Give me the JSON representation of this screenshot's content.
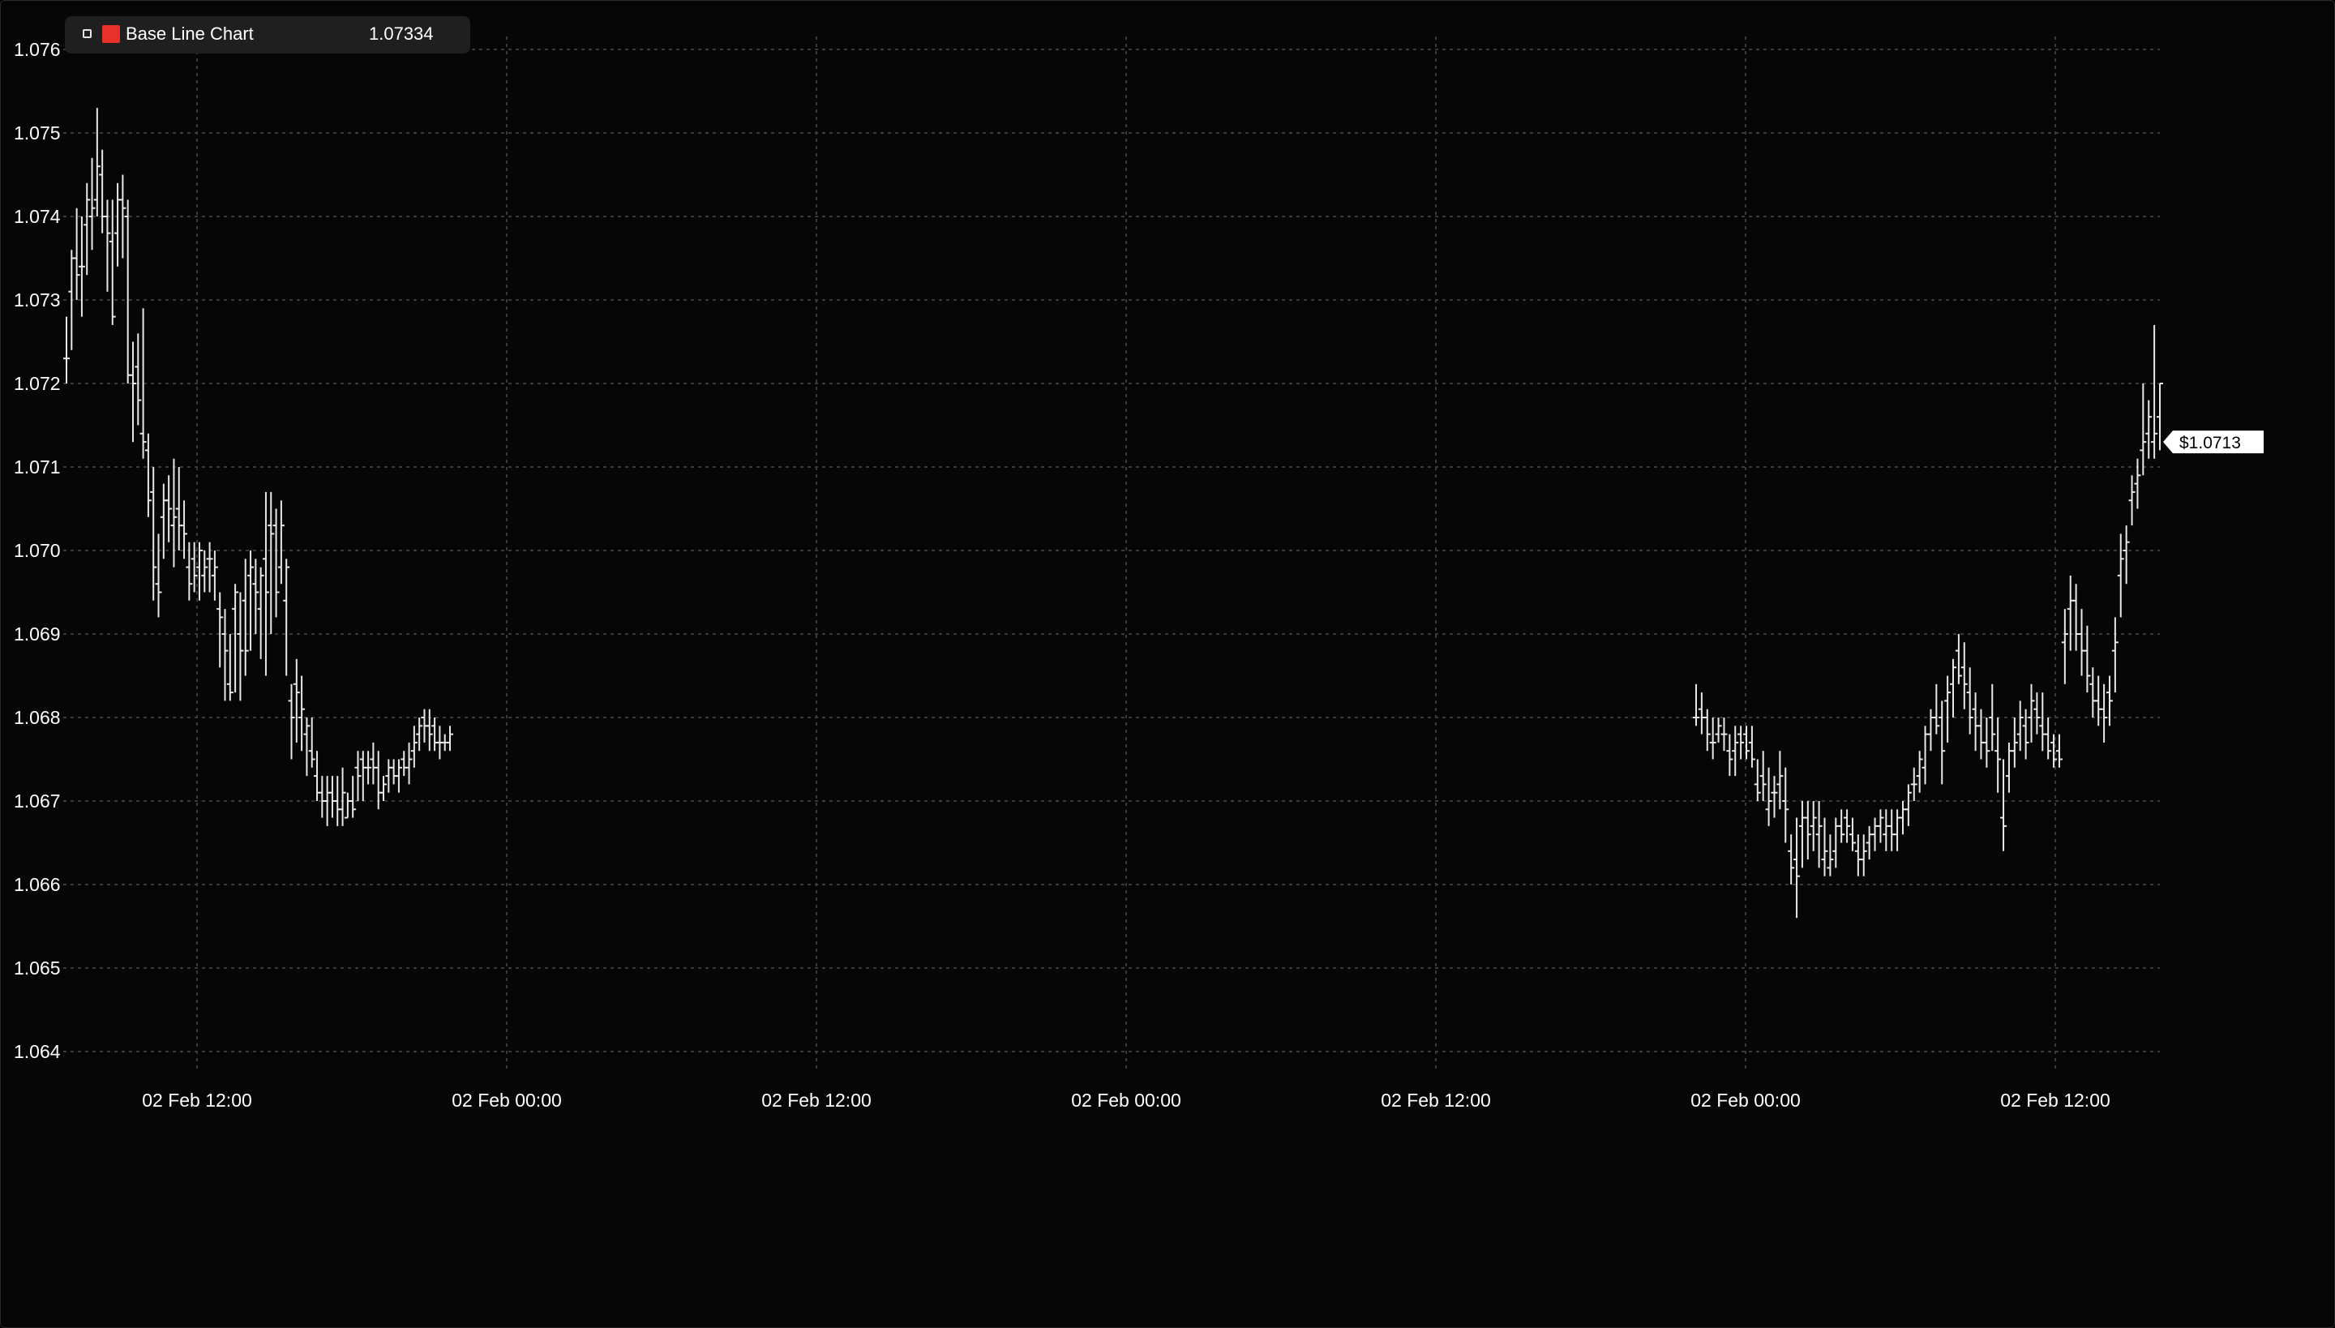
{
  "legend": {
    "series_name": "Base Line Chart",
    "value": "1.07334",
    "swatch_color": "#e8312a"
  },
  "price_label": "$1.0713",
  "colors": {
    "background": "#060606",
    "bar": "#e8e8e8",
    "grid": "#3a3a3a"
  },
  "chart_data": {
    "type": "bar",
    "style": "ohlc",
    "y_ticks": [
      "1.076",
      "1.075",
      "1.074",
      "1.073",
      "1.072",
      "1.071",
      "1.070",
      "1.069",
      "1.068",
      "1.067",
      "1.066",
      "1.065",
      "1.064"
    ],
    "y_tick_values": [
      1.076,
      1.075,
      1.074,
      1.073,
      1.072,
      1.071,
      1.07,
      1.069,
      1.068,
      1.067,
      1.066,
      1.065,
      1.064
    ],
    "ylim": [
      1.0636,
      1.0766
    ],
    "x_ticks": [
      "02 Feb 12:00",
      "02 Feb 00:00",
      "02 Feb 12:00",
      "02 Feb 00:00",
      "02 Feb 12:00",
      "02 Feb 00:00",
      "02 Feb 12:00"
    ],
    "grid": true,
    "last_price": 1.0713,
    "segments": [
      {
        "bars": [
          [
            1.0723,
            1.0728,
            1.072,
            1.0723
          ],
          [
            1.0731,
            1.0736,
            1.0724,
            1.0735
          ],
          [
            1.0735,
            1.0741,
            1.073,
            1.0733
          ],
          [
            1.0734,
            1.074,
            1.0728,
            1.0734
          ],
          [
            1.0739,
            1.0744,
            1.0733,
            1.0742
          ],
          [
            1.074,
            1.0747,
            1.0736,
            1.0741
          ],
          [
            1.0742,
            1.0753,
            1.074,
            1.0746
          ],
          [
            1.0745,
            1.0748,
            1.0738,
            1.074
          ],
          [
            1.074,
            1.0742,
            1.0731,
            1.0738
          ],
          [
            1.0737,
            1.0742,
            1.0727,
            1.0728
          ],
          [
            1.0738,
            1.0744,
            1.0734,
            1.0742
          ],
          [
            1.0742,
            1.0745,
            1.0735,
            1.0741
          ],
          [
            1.074,
            1.0742,
            1.072,
            1.0721
          ],
          [
            1.0721,
            1.0725,
            1.0713,
            1.072
          ],
          [
            1.0722,
            1.0726,
            1.0715,
            1.0718
          ],
          [
            1.0714,
            1.0729,
            1.0711,
            1.0713
          ],
          [
            1.0712,
            1.0714,
            1.0704,
            1.0706
          ],
          [
            1.0707,
            1.071,
            1.0694,
            1.0698
          ],
          [
            1.0696,
            1.0702,
            1.0692,
            1.0695
          ],
          [
            1.0704,
            1.0708,
            1.0699,
            1.0706
          ],
          [
            1.0706,
            1.0709,
            1.0701,
            1.0705
          ],
          [
            1.0703,
            1.0711,
            1.0698,
            1.0704
          ],
          [
            1.0705,
            1.071,
            1.07,
            1.0703
          ],
          [
            1.0703,
            1.0706,
            1.0699,
            1.0702
          ],
          [
            1.0698,
            1.0701,
            1.0694,
            1.0696
          ],
          [
            1.0699,
            1.0701,
            1.0695,
            1.0697
          ],
          [
            1.0698,
            1.0701,
            1.0694,
            1.07
          ],
          [
            1.0697,
            1.07,
            1.0695,
            1.0698
          ],
          [
            1.0699,
            1.0701,
            1.0695,
            1.0699
          ],
          [
            1.0697,
            1.07,
            1.0694,
            1.0698
          ],
          [
            1.0693,
            1.0695,
            1.0686,
            1.0692
          ],
          [
            1.069,
            1.0693,
            1.0682,
            1.0688
          ],
          [
            1.0684,
            1.069,
            1.0682,
            1.0683
          ],
          [
            1.0693,
            1.0696,
            1.0683,
            1.0695
          ],
          [
            1.069,
            1.0695,
            1.0682,
            1.0688
          ],
          [
            1.0694,
            1.0699,
            1.0685,
            1.0688
          ],
          [
            1.0697,
            1.07,
            1.0688,
            1.0698
          ],
          [
            1.0696,
            1.0699,
            1.069,
            1.0695
          ],
          [
            1.0693,
            1.0698,
            1.0687,
            1.0697
          ],
          [
            1.0699,
            1.0707,
            1.0685,
            1.0695
          ],
          [
            1.0703,
            1.0707,
            1.069,
            1.0702
          ],
          [
            1.0703,
            1.0705,
            1.0692,
            1.0695
          ],
          [
            1.0698,
            1.0706,
            1.0696,
            1.0703
          ],
          [
            1.0694,
            1.0699,
            1.0685,
            1.0698
          ],
          [
            1.0682,
            1.0684,
            1.0675,
            1.068
          ],
          [
            1.0684,
            1.0687,
            1.0677,
            1.0683
          ],
          [
            1.068,
            1.0685,
            1.0676,
            1.0681
          ],
          [
            1.0678,
            1.068,
            1.0673,
            1.0679
          ],
          [
            1.0676,
            1.068,
            1.0674,
            1.0675
          ],
          [
            1.0673,
            1.0676,
            1.067,
            1.0671
          ],
          [
            1.0671,
            1.0673,
            1.0668,
            1.067
          ],
          [
            1.067,
            1.0673,
            1.0667,
            1.0671
          ],
          [
            1.0671,
            1.0673,
            1.0668,
            1.067
          ],
          [
            1.067,
            1.0673,
            1.0667,
            1.0669
          ],
          [
            1.0669,
            1.0674,
            1.0667,
            1.0671
          ],
          [
            1.0668,
            1.0671,
            1.0668,
            1.067
          ],
          [
            1.067,
            1.0673,
            1.0668,
            1.0669
          ],
          [
            1.0674,
            1.0676,
            1.067,
            1.0673
          ],
          [
            1.0675,
            1.0676,
            1.067,
            1.0674
          ],
          [
            1.0674,
            1.0676,
            1.0672,
            1.0674
          ],
          [
            1.0675,
            1.0677,
            1.0672,
            1.0674
          ],
          [
            1.0674,
            1.0676,
            1.0669,
            1.0671
          ],
          [
            1.0671,
            1.0673,
            1.067,
            1.0672
          ],
          [
            1.0673,
            1.0675,
            1.0671,
            1.0674
          ],
          [
            1.0674,
            1.0675,
            1.0672,
            1.0673
          ],
          [
            1.0673,
            1.0675,
            1.0671,
            1.0674
          ],
          [
            1.0675,
            1.0676,
            1.0673,
            1.0674
          ],
          [
            1.0674,
            1.0677,
            1.0672,
            1.0675
          ],
          [
            1.0676,
            1.0679,
            1.0674,
            1.0677
          ],
          [
            1.0678,
            1.068,
            1.0676,
            1.0679
          ],
          [
            1.068,
            1.0681,
            1.0677,
            1.0679
          ],
          [
            1.0679,
            1.0681,
            1.0676,
            1.0678
          ],
          [
            1.0679,
            1.068,
            1.0676,
            1.0677
          ],
          [
            1.0677,
            1.0679,
            1.0675,
            1.0677
          ],
          [
            1.0677,
            1.0678,
            1.0676,
            1.0677
          ],
          [
            1.0677,
            1.0679,
            1.0676,
            1.0678
          ]
        ]
      },
      {
        "bars": [
          [
            1.068,
            1.0684,
            1.0679,
            1.068
          ],
          [
            1.0681,
            1.0683,
            1.0678,
            1.068
          ],
          [
            1.068,
            1.0681,
            1.0676,
            1.0678
          ],
          [
            1.0677,
            1.068,
            1.0675,
            1.0677
          ],
          [
            1.0678,
            1.068,
            1.0677,
            1.0679
          ],
          [
            1.0678,
            1.068,
            1.0676,
            1.0678
          ],
          [
            1.0676,
            1.0678,
            1.0673,
            1.0675
          ],
          [
            1.0676,
            1.0679,
            1.0673,
            1.0677
          ],
          [
            1.0678,
            1.0679,
            1.0675,
            1.0677
          ],
          [
            1.0678,
            1.0679,
            1.0675,
            1.0676
          ],
          [
            1.0677,
            1.0679,
            1.0674,
            1.0675
          ],
          [
            1.0672,
            1.0675,
            1.067,
            1.0671
          ],
          [
            1.0673,
            1.0676,
            1.067,
            1.0672
          ],
          [
            1.0669,
            1.0674,
            1.0667,
            1.067
          ],
          [
            1.0671,
            1.0673,
            1.0668,
            1.0671
          ],
          [
            1.0672,
            1.0676,
            1.0669,
            1.0673
          ],
          [
            1.067,
            1.0674,
            1.0665,
            1.0669
          ],
          [
            1.0664,
            1.0666,
            1.066,
            1.0662
          ],
          [
            1.0663,
            1.0668,
            1.0656,
            1.0661
          ],
          [
            1.0667,
            1.067,
            1.0662,
            1.0668
          ],
          [
            1.0668,
            1.067,
            1.0663,
            1.0666
          ],
          [
            1.0667,
            1.067,
            1.0664,
            1.0668
          ],
          [
            1.0666,
            1.067,
            1.0662,
            1.0667
          ],
          [
            1.0663,
            1.0668,
            1.0661,
            1.0664
          ],
          [
            1.0662,
            1.0666,
            1.0661,
            1.0663
          ],
          [
            1.0664,
            1.0668,
            1.0662,
            1.0667
          ],
          [
            1.0667,
            1.0669,
            1.0665,
            1.0666
          ],
          [
            1.0668,
            1.0669,
            1.0665,
            1.0667
          ],
          [
            1.0666,
            1.0668,
            1.0664,
            1.0665
          ],
          [
            1.0664,
            1.0666,
            1.0661,
            1.0663
          ],
          [
            1.0663,
            1.0666,
            1.0661,
            1.0664
          ],
          [
            1.0665,
            1.0667,
            1.0663,
            1.0666
          ],
          [
            1.0666,
            1.0668,
            1.0664,
            1.0667
          ],
          [
            1.0667,
            1.0669,
            1.0665,
            1.0668
          ],
          [
            1.0666,
            1.0669,
            1.0664,
            1.0667
          ],
          [
            1.0667,
            1.0669,
            1.0664,
            1.0666
          ],
          [
            1.0666,
            1.0669,
            1.0664,
            1.0668
          ],
          [
            1.0668,
            1.067,
            1.0666,
            1.0669
          ],
          [
            1.0669,
            1.0672,
            1.0667,
            1.0671
          ],
          [
            1.0672,
            1.0674,
            1.067,
            1.0672
          ],
          [
            1.0673,
            1.0676,
            1.0671,
            1.0675
          ],
          [
            1.0674,
            1.0679,
            1.0672,
            1.0678
          ],
          [
            1.0678,
            1.0681,
            1.0676,
            1.068
          ],
          [
            1.068,
            1.0684,
            1.0678,
            1.0679
          ],
          [
            1.068,
            1.0682,
            1.0672,
            1.0676
          ],
          [
            1.0682,
            1.0685,
            1.0677,
            1.0683
          ],
          [
            1.0684,
            1.0687,
            1.068,
            1.0686
          ],
          [
            1.0688,
            1.069,
            1.0684,
            1.0685
          ],
          [
            1.0686,
            1.0689,
            1.0681,
            1.0684
          ],
          [
            1.0683,
            1.0686,
            1.0678,
            1.068
          ],
          [
            1.0681,
            1.0683,
            1.0676,
            1.0679
          ],
          [
            1.0679,
            1.0681,
            1.0675,
            1.0677
          ],
          [
            1.0677,
            1.068,
            1.0674,
            1.0676
          ],
          [
            1.068,
            1.0684,
            1.0676,
            1.0678
          ],
          [
            1.0676,
            1.068,
            1.0671,
            1.0675
          ],
          [
            1.0668,
            1.0675,
            1.0664,
            1.0667
          ],
          [
            1.0673,
            1.0677,
            1.0671,
            1.0676
          ],
          [
            1.0676,
            1.068,
            1.0674,
            1.0677
          ],
          [
            1.0678,
            1.0682,
            1.0676,
            1.068
          ],
          [
            1.0679,
            1.0681,
            1.0675,
            1.0677
          ],
          [
            1.068,
            1.0684,
            1.0677,
            1.0682
          ],
          [
            1.0681,
            1.0683,
            1.0678,
            1.068
          ],
          [
            1.0679,
            1.0683,
            1.0676,
            1.0678
          ],
          [
            1.0678,
            1.068,
            1.0675,
            1.0676
          ],
          [
            1.0677,
            1.0678,
            1.0674,
            1.0675
          ],
          [
            1.0676,
            1.0678,
            1.0674,
            1.0675
          ],
          [
            1.0689,
            1.0693,
            1.0684,
            1.069
          ],
          [
            1.0693,
            1.0697,
            1.0688,
            1.0694
          ],
          [
            1.0694,
            1.0696,
            1.0688,
            1.069
          ],
          [
            1.069,
            1.0693,
            1.0685,
            1.0688
          ],
          [
            1.0688,
            1.0691,
            1.0683,
            1.0685
          ],
          [
            1.0684,
            1.0686,
            1.068,
            1.0682
          ],
          [
            1.0682,
            1.0685,
            1.0679,
            1.0681
          ],
          [
            1.0681,
            1.0684,
            1.0677,
            1.068
          ],
          [
            1.0683,
            1.0685,
            1.0679,
            1.0682
          ],
          [
            1.0688,
            1.0692,
            1.0683,
            1.0689
          ],
          [
            1.0697,
            1.0702,
            1.0692,
            1.0699
          ],
          [
            1.07,
            1.0703,
            1.0696,
            1.0701
          ],
          [
            1.0706,
            1.0709,
            1.0703,
            1.0707
          ],
          [
            1.0708,
            1.0711,
            1.0705,
            1.0709
          ],
          [
            1.0712,
            1.072,
            1.0709,
            1.0713
          ],
          [
            1.0714,
            1.0718,
            1.0711,
            1.0716
          ],
          [
            1.0713,
            1.0727,
            1.0711,
            1.0714
          ],
          [
            1.0716,
            1.072,
            1.0712,
            1.072
          ]
        ]
      }
    ]
  }
}
